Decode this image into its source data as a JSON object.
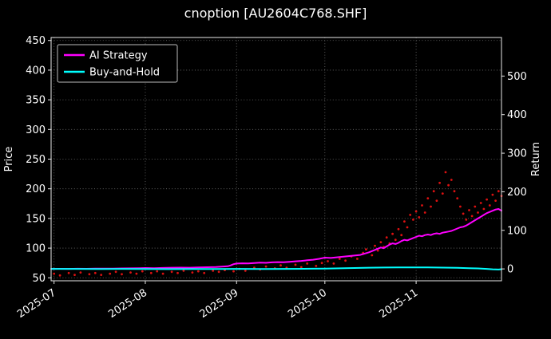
{
  "figure": {
    "background": "#000000",
    "text_color": "#ffffff"
  },
  "chart_data": {
    "type": "line+scatter",
    "title": "cnoption [AU2604C768.SHF]",
    "ylabel_left": "Price",
    "ylabel_right": "Return",
    "grid": true,
    "x_start_date": "2025-06-30",
    "x_domain_days": [
      0,
      153
    ],
    "x_ticks": [
      {
        "day": 1,
        "label": "2025-07"
      },
      {
        "day": 32,
        "label": "2025-08"
      },
      {
        "day": 63,
        "label": "2025-09"
      },
      {
        "day": 93,
        "label": "2025-10"
      },
      {
        "day": 124,
        "label": "2025-11"
      }
    ],
    "ylim_left": [
      45,
      455
    ],
    "yticks_left": [
      50,
      100,
      150,
      200,
      250,
      300,
      350,
      400,
      450
    ],
    "yticks_right": [
      0,
      100,
      200,
      300,
      400,
      500
    ],
    "right_axis": {
      "base_price": 65
    },
    "legend": {
      "position": "upper-left",
      "entries": [
        "AI Strategy",
        "Buy-and-Hold"
      ]
    },
    "series": [
      {
        "name": "AI Strategy",
        "type": "line",
        "color": "#ff00ff",
        "in_legend": true,
        "points": [
          [
            0,
            65
          ],
          [
            3,
            65.2
          ],
          [
            6,
            65
          ],
          [
            9,
            65.3
          ],
          [
            12,
            65.1
          ],
          [
            15,
            65.4
          ],
          [
            18,
            65.6
          ],
          [
            21,
            65.4
          ],
          [
            24,
            65.8
          ],
          [
            27,
            66
          ],
          [
            30,
            66.3
          ],
          [
            32,
            66.5
          ],
          [
            35,
            66.3
          ],
          [
            38,
            66.7
          ],
          [
            41,
            67
          ],
          [
            44,
            67.2
          ],
          [
            47,
            67
          ],
          [
            50,
            67.5
          ],
          [
            53,
            67.8
          ],
          [
            56,
            68.2
          ],
          [
            58,
            68.8
          ],
          [
            60,
            69.5
          ],
          [
            61,
            71
          ],
          [
            62,
            73
          ],
          [
            63,
            74
          ],
          [
            65,
            74.5
          ],
          [
            67,
            74.2
          ],
          [
            69,
            75
          ],
          [
            71,
            75.5
          ],
          [
            73,
            75.2
          ],
          [
            75,
            76
          ],
          [
            77,
            76.5
          ],
          [
            79,
            76.2
          ],
          [
            81,
            77
          ],
          [
            83,
            77.8
          ],
          [
            85,
            78.5
          ],
          [
            87,
            79.5
          ],
          [
            89,
            80.5
          ],
          [
            91,
            82
          ],
          [
            93,
            84
          ],
          [
            95,
            83.5
          ],
          [
            97,
            84.5
          ],
          [
            99,
            85.5
          ],
          [
            101,
            86.5
          ],
          [
            103,
            87.5
          ],
          [
            105,
            88.5
          ],
          [
            106,
            90
          ],
          [
            107,
            91.5
          ],
          [
            108,
            93
          ],
          [
            109,
            95
          ],
          [
            110,
            97
          ],
          [
            111,
            99
          ],
          [
            112,
            101
          ],
          [
            113,
            100
          ],
          [
            114,
            103
          ],
          [
            115,
            106
          ],
          [
            116,
            108
          ],
          [
            117,
            107
          ],
          [
            118,
            109
          ],
          [
            119,
            112
          ],
          [
            120,
            114
          ],
          [
            121,
            113
          ],
          [
            122,
            115
          ],
          [
            123,
            117
          ],
          [
            124,
            119
          ],
          [
            125,
            121
          ],
          [
            126,
            120
          ],
          [
            127,
            122
          ],
          [
            128,
            123
          ],
          [
            129,
            122
          ],
          [
            130,
            124
          ],
          [
            131,
            125
          ],
          [
            132,
            124
          ],
          [
            133,
            126
          ],
          [
            134,
            127
          ],
          [
            135,
            128
          ],
          [
            136,
            129
          ],
          [
            137,
            131
          ],
          [
            138,
            133
          ],
          [
            139,
            135
          ],
          [
            140,
            136
          ],
          [
            141,
            138
          ],
          [
            142,
            141
          ],
          [
            143,
            144
          ],
          [
            144,
            147
          ],
          [
            145,
            150
          ],
          [
            146,
            153
          ],
          [
            147,
            156
          ],
          [
            148,
            159
          ],
          [
            149,
            161
          ],
          [
            150,
            163
          ],
          [
            151,
            165
          ],
          [
            152,
            166
          ],
          [
            153,
            163
          ]
        ]
      },
      {
        "name": "Buy-and-Hold",
        "type": "line",
        "color": "#00ffff",
        "in_legend": true,
        "points": [
          [
            0,
            65
          ],
          [
            8,
            65
          ],
          [
            16,
            64.8
          ],
          [
            24,
            65
          ],
          [
            32,
            64.8
          ],
          [
            40,
            64.6
          ],
          [
            48,
            64.9
          ],
          [
            56,
            64.7
          ],
          [
            64,
            65
          ],
          [
            72,
            64.8
          ],
          [
            80,
            65
          ],
          [
            88,
            65.3
          ],
          [
            93,
            65.5
          ],
          [
            98,
            66
          ],
          [
            103,
            66.5
          ],
          [
            108,
            67
          ],
          [
            113,
            67.3
          ],
          [
            118,
            67.5
          ],
          [
            123,
            67.4
          ],
          [
            128,
            67.5
          ],
          [
            133,
            67.2
          ],
          [
            138,
            66.8
          ],
          [
            142,
            66.3
          ],
          [
            145,
            65.8
          ],
          [
            148,
            65
          ],
          [
            150,
            64.4
          ],
          [
            152,
            64
          ],
          [
            153,
            64.5
          ]
        ]
      },
      {
        "name": "price-dots",
        "type": "scatter",
        "color": "#dd1111",
        "in_legend": false,
        "points": [
          [
            1,
            57
          ],
          [
            3,
            54
          ],
          [
            6,
            58
          ],
          [
            8,
            55
          ],
          [
            10,
            59
          ],
          [
            13,
            56
          ],
          [
            15,
            58
          ],
          [
            17,
            55
          ],
          [
            20,
            57
          ],
          [
            22,
            60
          ],
          [
            24,
            56
          ],
          [
            27,
            59
          ],
          [
            29,
            57
          ],
          [
            31,
            61
          ],
          [
            34,
            58
          ],
          [
            36,
            61
          ],
          [
            38,
            57
          ],
          [
            41,
            60
          ],
          [
            43,
            58
          ],
          [
            45,
            62
          ],
          [
            48,
            59
          ],
          [
            50,
            61
          ],
          [
            52,
            58
          ],
          [
            55,
            62
          ],
          [
            57,
            60
          ],
          [
            59,
            63
          ],
          [
            62,
            61
          ],
          [
            64,
            65
          ],
          [
            66,
            62
          ],
          [
            69,
            67
          ],
          [
            71,
            64
          ],
          [
            73,
            69
          ],
          [
            76,
            66
          ],
          [
            78,
            71
          ],
          [
            80,
            67
          ],
          [
            83,
            72
          ],
          [
            85,
            68
          ],
          [
            87,
            74
          ],
          [
            90,
            70
          ],
          [
            92,
            75
          ],
          [
            94,
            78
          ],
          [
            96,
            74
          ],
          [
            98,
            82
          ],
          [
            100,
            79
          ],
          [
            102,
            86
          ],
          [
            104,
            82
          ],
          [
            106,
            92
          ],
          [
            107,
            98
          ],
          [
            109,
            88
          ],
          [
            110,
            104
          ],
          [
            111,
            96
          ],
          [
            112,
            110
          ],
          [
            113,
            102
          ],
          [
            114,
            118
          ],
          [
            115,
            108
          ],
          [
            116,
            124
          ],
          [
            117,
            114
          ],
          [
            118,
            132
          ],
          [
            119,
            122
          ],
          [
            120,
            145
          ],
          [
            121,
            135
          ],
          [
            122,
            156
          ],
          [
            123,
            148
          ],
          [
            124,
            162
          ],
          [
            125,
            152
          ],
          [
            126,
            172
          ],
          [
            127,
            160
          ],
          [
            128,
            184
          ],
          [
            129,
            170
          ],
          [
            130,
            196
          ],
          [
            131,
            180
          ],
          [
            132,
            210
          ],
          [
            133,
            192
          ],
          [
            134,
            228
          ],
          [
            135,
            206
          ],
          [
            136,
            215
          ],
          [
            137,
            196
          ],
          [
            138,
            184
          ],
          [
            139,
            170
          ],
          [
            140,
            158
          ],
          [
            141,
            148
          ],
          [
            142,
            164
          ],
          [
            143,
            154
          ],
          [
            144,
            170
          ],
          [
            145,
            160
          ],
          [
            146,
            176
          ],
          [
            147,
            166
          ],
          [
            148,
            182
          ],
          [
            149,
            172
          ],
          [
            150,
            190
          ],
          [
            151,
            180
          ],
          [
            152,
            196
          ],
          [
            153,
            188
          ]
        ]
      }
    ]
  }
}
